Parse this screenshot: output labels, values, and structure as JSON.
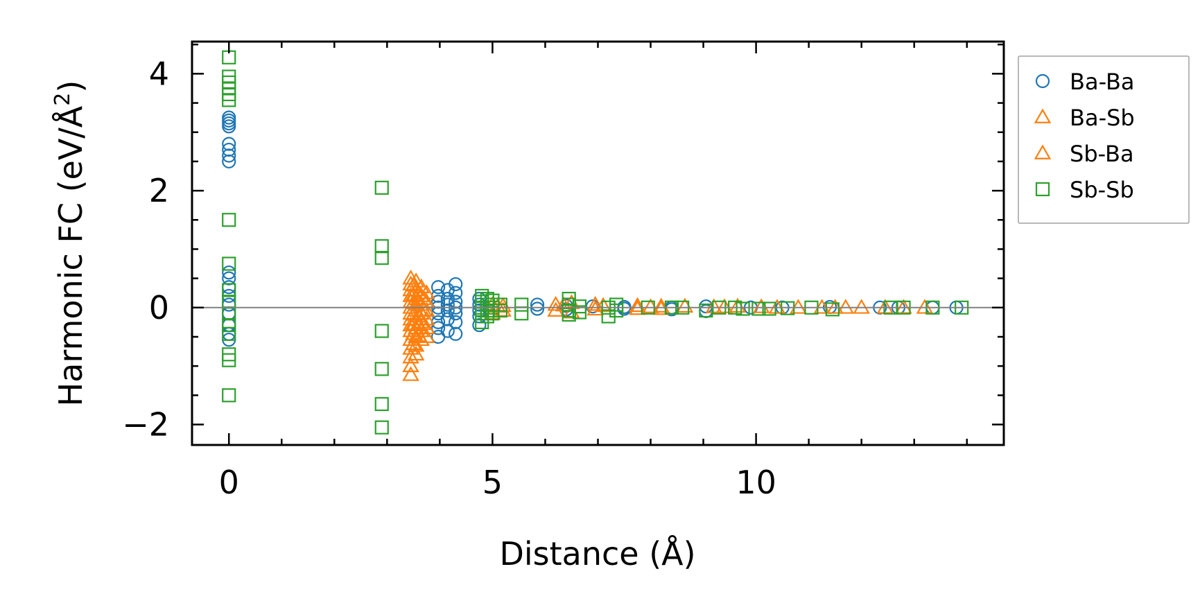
{
  "chart_data": {
    "type": "scatter",
    "xlabel": "Distance (Å)",
    "ylabel_main": "Harmonic FC (eV/Å",
    "ylabel_sup": "2",
    "ylabel_close": ")",
    "xlim": [
      -0.7,
      14.7
    ],
    "ylim": [
      -2.35,
      4.55
    ],
    "x_ticks": [
      0,
      5,
      10
    ],
    "x_tick_labels": [
      "0",
      "5",
      "10"
    ],
    "y_ticks": [
      -2,
      0,
      2,
      4
    ],
    "y_tick_labels": [
      "−2",
      "0",
      "2",
      "4"
    ],
    "x_minor_step": 1,
    "y_minor_step": 0.5,
    "zero_line": 0,
    "grid": false,
    "legend_position": "outside-right",
    "colors": {
      "baba": "#1f77b4",
      "basb": "#ff7f0e",
      "sbba": "#ff7f0e",
      "sbsb": "#2ca02c",
      "zero_line": "#808080"
    },
    "series": [
      {
        "name": "Ba-Ba",
        "marker": "circle",
        "color": "#1f77b4",
        "points": [
          [
            0,
            3.25
          ],
          [
            0,
            3.2
          ],
          [
            0,
            3.15
          ],
          [
            0,
            3.1
          ],
          [
            0,
            2.8
          ],
          [
            0,
            2.7
          ],
          [
            0,
            2.6
          ],
          [
            0,
            2.5
          ],
          [
            0,
            0.6
          ],
          [
            0,
            0.5
          ],
          [
            0,
            0.35
          ],
          [
            0,
            0.2
          ],
          [
            0,
            0.05
          ],
          [
            0,
            -0.1
          ],
          [
            0,
            -0.3
          ],
          [
            0,
            -0.45
          ],
          [
            0,
            -0.55
          ],
          [
            3.97,
            0.35
          ],
          [
            3.97,
            0.2
          ],
          [
            3.97,
            0.1
          ],
          [
            3.97,
            0
          ],
          [
            3.97,
            -0.1
          ],
          [
            3.97,
            -0.25
          ],
          [
            3.97,
            -0.35
          ],
          [
            3.97,
            -0.5
          ],
          [
            4.15,
            0.3
          ],
          [
            4.15,
            0.15
          ],
          [
            4.15,
            0.05
          ],
          [
            4.15,
            -0.05
          ],
          [
            4.15,
            -0.2
          ],
          [
            4.15,
            -0.4
          ],
          [
            4.3,
            0.4
          ],
          [
            4.3,
            0.25
          ],
          [
            4.3,
            0.1
          ],
          [
            4.3,
            0
          ],
          [
            4.3,
            -0.1
          ],
          [
            4.3,
            -0.25
          ],
          [
            4.3,
            -0.45
          ],
          [
            4.75,
            0.15
          ],
          [
            4.75,
            0.05
          ],
          [
            4.75,
            -0.05
          ],
          [
            4.75,
            -0.15
          ],
          [
            4.75,
            -0.3
          ],
          [
            5.85,
            0.05
          ],
          [
            5.85,
            -0.02
          ],
          [
            6.4,
            0.03
          ],
          [
            6.4,
            -0.03
          ],
          [
            6.9,
            0.02
          ],
          [
            7.5,
            0.01
          ],
          [
            7.5,
            -0.02
          ],
          [
            8.4,
            0
          ],
          [
            8.4,
            -0.03
          ],
          [
            9.05,
            -0.06
          ],
          [
            9.05,
            0.02
          ],
          [
            9.9,
            0
          ],
          [
            10.5,
            0
          ],
          [
            11.4,
            0.01
          ],
          [
            12.35,
            0
          ],
          [
            12.7,
            0
          ],
          [
            13.35,
            0
          ],
          [
            13.8,
            0
          ]
        ]
      },
      {
        "name": "Ba-Sb",
        "marker": "triangle",
        "color": "#ff7f0e",
        "points": [
          [
            3.45,
            0.5
          ],
          [
            3.45,
            0.4
          ],
          [
            3.45,
            0.3
          ],
          [
            3.45,
            0.2
          ],
          [
            3.45,
            0.1
          ],
          [
            3.45,
            0
          ],
          [
            3.45,
            -0.1
          ],
          [
            3.45,
            -0.2
          ],
          [
            3.45,
            -0.3
          ],
          [
            3.45,
            -0.4
          ],
          [
            3.45,
            -0.55
          ],
          [
            3.45,
            -0.7
          ],
          [
            3.45,
            -0.85
          ],
          [
            3.45,
            -1.0
          ],
          [
            3.45,
            -1.15
          ],
          [
            3.55,
            0.45
          ],
          [
            3.55,
            0.3
          ],
          [
            3.55,
            0.15
          ],
          [
            3.55,
            0.05
          ],
          [
            3.55,
            -0.05
          ],
          [
            3.55,
            -0.2
          ],
          [
            3.55,
            -0.35
          ],
          [
            3.55,
            -0.5
          ],
          [
            3.55,
            -0.65
          ],
          [
            3.55,
            -0.8
          ],
          [
            3.65,
            0.35
          ],
          [
            3.65,
            0.2
          ],
          [
            3.65,
            0.05
          ],
          [
            3.65,
            -0.1
          ],
          [
            3.65,
            -0.25
          ],
          [
            3.65,
            -0.4
          ],
          [
            3.65,
            -0.55
          ],
          [
            3.75,
            0.25
          ],
          [
            3.75,
            0.1
          ],
          [
            3.75,
            -0.05
          ],
          [
            3.75,
            -0.2
          ],
          [
            3.75,
            -0.35
          ],
          [
            3.75,
            -0.5
          ],
          [
            5.0,
            0.05
          ],
          [
            5.0,
            -0.1
          ],
          [
            5.2,
            0.03
          ],
          [
            5.2,
            -0.05
          ],
          [
            6.2,
            0.05
          ],
          [
            6.2,
            -0.05
          ],
          [
            6.5,
            0.08
          ],
          [
            6.5,
            -0.08
          ],
          [
            6.95,
            0.05
          ],
          [
            6.95,
            -0.03
          ],
          [
            7.75,
            0.03
          ],
          [
            7.75,
            -0.02
          ],
          [
            8.2,
            0.02
          ],
          [
            8.2,
            -0.02
          ],
          [
            8.65,
            0.02
          ],
          [
            9.2,
            0.01
          ],
          [
            9.65,
            0.02
          ],
          [
            10.1,
            0.01
          ],
          [
            10.8,
            0
          ],
          [
            11.25,
            0
          ],
          [
            11.7,
            0
          ],
          [
            12.0,
            0
          ],
          [
            12.45,
            0
          ],
          [
            13.2,
            0
          ]
        ]
      },
      {
        "name": "Sb-Ba",
        "marker": "triangle",
        "color": "#ff7f0e",
        "points": [
          [
            3.5,
            0.38
          ],
          [
            3.5,
            0.22
          ],
          [
            3.5,
            0.08
          ],
          [
            3.5,
            -0.12
          ],
          [
            3.5,
            -0.28
          ],
          [
            3.5,
            -0.45
          ],
          [
            3.5,
            -0.62
          ],
          [
            3.6,
            0.25
          ],
          [
            3.6,
            0.1
          ],
          [
            3.6,
            -0.15
          ],
          [
            3.6,
            -0.3
          ],
          [
            3.6,
            -0.48
          ],
          [
            3.7,
            0.15
          ],
          [
            3.7,
            -0.05
          ],
          [
            3.7,
            -0.28
          ],
          [
            5.1,
            0.02
          ],
          [
            6.35,
            0.04
          ],
          [
            7.1,
            0.03
          ],
          [
            8.0,
            0.01
          ],
          [
            9.4,
            0.01
          ],
          [
            10.4,
            0
          ],
          [
            11.5,
            0
          ],
          [
            12.8,
            0
          ]
        ]
      },
      {
        "name": "Sb-Sb",
        "marker": "square",
        "color": "#2ca02c",
        "points": [
          [
            0,
            4.28
          ],
          [
            0,
            3.95
          ],
          [
            0,
            3.85
          ],
          [
            0,
            3.75
          ],
          [
            0,
            3.65
          ],
          [
            0,
            3.55
          ],
          [
            0,
            1.5
          ],
          [
            0,
            0.75
          ],
          [
            0,
            0.3
          ],
          [
            0,
            0.1
          ],
          [
            0,
            -0.1
          ],
          [
            0,
            -0.3
          ],
          [
            0,
            -0.45
          ],
          [
            0,
            -0.8
          ],
          [
            0,
            -0.9
          ],
          [
            0,
            -1.5
          ],
          [
            2.9,
            2.05
          ],
          [
            2.9,
            1.05
          ],
          [
            2.9,
            0.85
          ],
          [
            2.9,
            -0.4
          ],
          [
            2.9,
            -1.05
          ],
          [
            2.9,
            -1.65
          ],
          [
            2.9,
            -2.05
          ],
          [
            4.8,
            0.2
          ],
          [
            4.8,
            0.1
          ],
          [
            4.8,
            0
          ],
          [
            4.8,
            -0.1
          ],
          [
            4.8,
            -0.25
          ],
          [
            4.9,
            0.15
          ],
          [
            4.9,
            0.05
          ],
          [
            4.9,
            -0.05
          ],
          [
            4.9,
            -0.15
          ],
          [
            5.0,
            0.12
          ],
          [
            5.0,
            0
          ],
          [
            5.0,
            -0.1
          ],
          [
            5.15,
            0.05
          ],
          [
            5.15,
            -0.05
          ],
          [
            5.55,
            0.05
          ],
          [
            5.55,
            -0.1
          ],
          [
            6.45,
            0.15
          ],
          [
            6.45,
            0.05
          ],
          [
            6.45,
            -0.05
          ],
          [
            6.45,
            -0.12
          ],
          [
            6.65,
            0.02
          ],
          [
            6.65,
            -0.08
          ],
          [
            7.2,
            0
          ],
          [
            7.2,
            -0.15
          ],
          [
            7.35,
            0.05
          ],
          [
            7.35,
            -0.05
          ],
          [
            7.95,
            0
          ],
          [
            8.4,
            0
          ],
          [
            8.6,
            0
          ],
          [
            9.05,
            -0.05
          ],
          [
            9.3,
            0
          ],
          [
            9.6,
            0
          ],
          [
            9.75,
            -0.02
          ],
          [
            10.05,
            -0.02
          ],
          [
            10.25,
            -0.02
          ],
          [
            10.6,
            -0.01
          ],
          [
            11.05,
            0
          ],
          [
            11.45,
            -0.03
          ],
          [
            12.55,
            0
          ],
          [
            12.8,
            0
          ],
          [
            13.35,
            0
          ],
          [
            13.9,
            0
          ]
        ]
      }
    ]
  }
}
